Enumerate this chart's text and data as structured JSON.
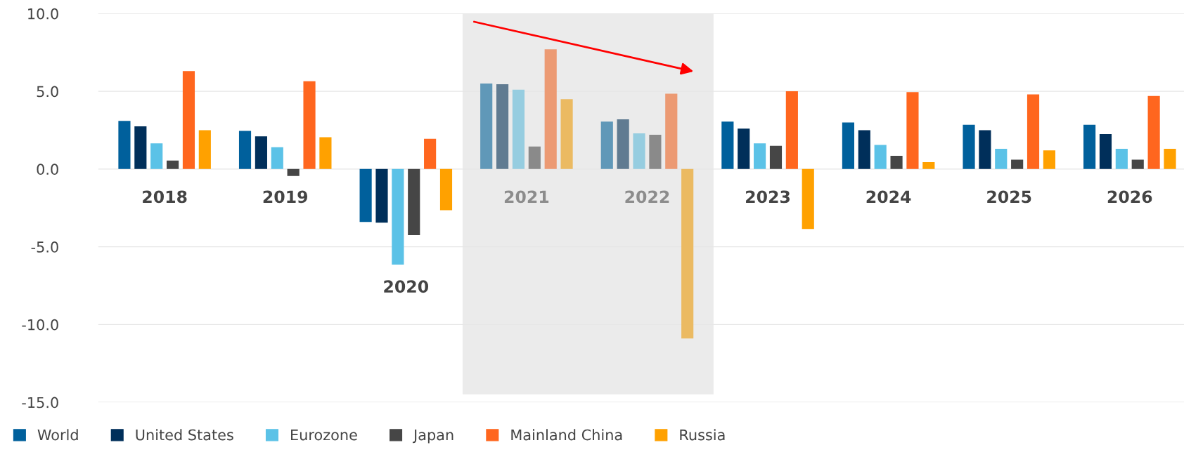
{
  "chart_data": {
    "type": "bar",
    "categories": [
      "2018",
      "2019",
      "2020",
      "2021",
      "2022",
      "2023",
      "2024",
      "2025",
      "2026"
    ],
    "series": [
      {
        "name": "World",
        "color": "#00609c",
        "colors": [
          "#00609c",
          "#00609c",
          "#00609c",
          "#6098b8",
          "#6098b8",
          "#00609c",
          "#00609c",
          "#00609c",
          "#00609c"
        ],
        "values": [
          3.1,
          2.45,
          -3.4,
          5.5,
          3.05,
          3.05,
          3.0,
          2.85,
          2.85
        ]
      },
      {
        "name": "United States",
        "color": "#002f5a",
        "colors": [
          "#002f5a",
          "#002f5a",
          "#002f5a",
          "#607b91",
          "#607b91",
          "#002f5a",
          "#002f5a",
          "#002f5a",
          "#002f5a"
        ],
        "values": [
          2.75,
          2.1,
          -3.45,
          5.45,
          3.2,
          2.6,
          2.5,
          2.5,
          2.25
        ]
      },
      {
        "name": "Eurozone",
        "color": "#5bc2e7",
        "colors": [
          "#5bc2e7",
          "#5bc2e7",
          "#5bc2e7",
          "#96cde0",
          "#96cde0",
          "#5bc2e7",
          "#5bc2e7",
          "#5bc2e7",
          "#5bc2e7"
        ],
        "values": [
          1.65,
          1.4,
          -6.15,
          5.1,
          2.3,
          1.65,
          1.55,
          1.3,
          1.3
        ]
      },
      {
        "name": "Japan",
        "color": "#464646",
        "colors": [
          "#464646",
          "#464646",
          "#464646",
          "#8a8a8a",
          "#8a8a8a",
          "#464646",
          "#464646",
          "#464646",
          "#464646"
        ],
        "values": [
          0.55,
          -0.45,
          -4.25,
          1.45,
          2.2,
          1.5,
          0.85,
          0.6,
          0.6
        ]
      },
      {
        "name": "Mainland China",
        "color": "#ff661e",
        "colors": [
          "#ff661e",
          "#ff661e",
          "#ff661e",
          "#ec9a73",
          "#ec9a73",
          "#ff661e",
          "#ff661e",
          "#ff661e",
          "#ff661e"
        ],
        "values": [
          6.3,
          5.65,
          1.95,
          7.7,
          4.85,
          5.0,
          4.95,
          4.8,
          4.7
        ]
      },
      {
        "name": "Russia",
        "color": "#ffa100",
        "colors": [
          "#ffa100",
          "#ffa100",
          "#ffa100",
          "#ebba62",
          "#ebba62",
          "#ffa100",
          "#ffa100",
          "#ffa100",
          "#ffa100"
        ],
        "values": [
          2.5,
          2.05,
          -2.65,
          4.5,
          -10.9,
          -3.85,
          0.45,
          1.2,
          1.3
        ]
      }
    ],
    "ylim": [
      -15,
      10
    ],
    "yticks": [
      {
        "value": -15,
        "label": "-15.0"
      },
      {
        "value": -10,
        "label": "-10.0"
      },
      {
        "value": -5,
        "label": "-5.0"
      },
      {
        "value": 0,
        "label": "0.0"
      },
      {
        "value": 5,
        "label": "5.0"
      },
      {
        "value": 10,
        "label": "10.0"
      }
    ],
    "bands": [
      {
        "axis": "x",
        "from": "2021",
        "to": "2022",
        "color": "#ebebeb"
      }
    ],
    "grid": "y",
    "legend": "bottom left"
  }
}
